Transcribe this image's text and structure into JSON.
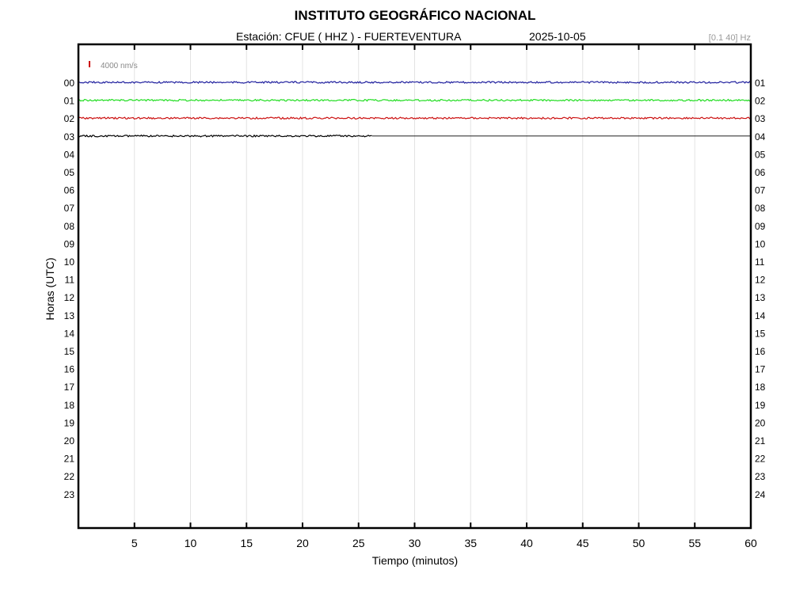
{
  "header": {
    "title": "INSTITUTO GEOGRÁFICO NACIONAL",
    "station": "Estación:  CFUE ( HHZ ) - FUERTEVENTURA",
    "date": "2025-10-05",
    "filter": "[0.1 40] Hz"
  },
  "chart_data": {
    "type": "line",
    "title": "INSTITUTO GEOGRÁFICO NACIONAL",
    "xlabel": "Tiempo (minutos)",
    "ylabel": "Horas (UTC)",
    "xlim": [
      0,
      60
    ],
    "x_ticks": [
      5,
      10,
      15,
      20,
      25,
      30,
      35,
      40,
      45,
      50,
      55,
      60
    ],
    "y_left_ticks": [
      "00",
      "01",
      "02",
      "03",
      "04",
      "05",
      "06",
      "07",
      "08",
      "09",
      "10",
      "11",
      "12",
      "13",
      "14",
      "15",
      "16",
      "17",
      "18",
      "19",
      "20",
      "21",
      "22",
      "23"
    ],
    "y_right_ticks": [
      "01",
      "02",
      "03",
      "04",
      "05",
      "06",
      "07",
      "08",
      "09",
      "10",
      "11",
      "12",
      "13",
      "14",
      "15",
      "16",
      "17",
      "18",
      "19",
      "20",
      "21",
      "22",
      "23",
      "24"
    ],
    "grid": "vertical",
    "scale_bar": {
      "label": "4000 nm/s",
      "color": "#cc0000"
    },
    "series": [
      {
        "hour": "00",
        "start_min": 0,
        "end_min": 60,
        "color": "#1f1f9e"
      },
      {
        "hour": "01",
        "start_min": 0,
        "end_min": 60,
        "color": "#22dd22"
      },
      {
        "hour": "02",
        "start_min": 0,
        "end_min": 60,
        "color": "#cc1111"
      },
      {
        "hour": "03",
        "start_min": 0,
        "end_min": 26.2,
        "color": "#000000"
      }
    ]
  }
}
